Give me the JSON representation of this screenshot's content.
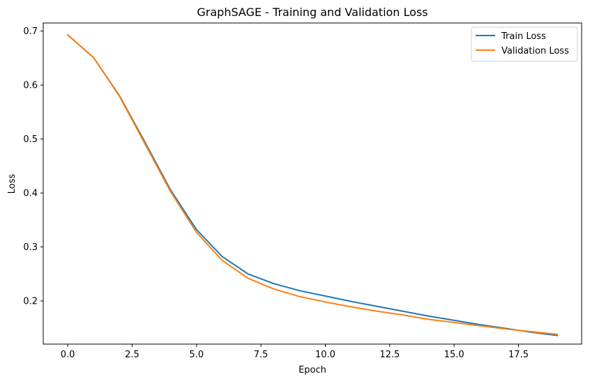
{
  "chart_data": {
    "type": "line",
    "title": "GraphSAGE - Training and Validation Loss",
    "xlabel": "Epoch",
    "ylabel": "Loss",
    "xlim": [
      -0.95,
      19.95
    ],
    "ylim": [
      0.12,
      0.715
    ],
    "xticks": [
      0.0,
      2.5,
      5.0,
      7.5,
      10.0,
      12.5,
      15.0,
      17.5
    ],
    "xtick_labels": [
      "0.0",
      "2.5",
      "5.0",
      "7.5",
      "10.0",
      "12.5",
      "15.0",
      "17.5"
    ],
    "yticks": [
      0.2,
      0.3,
      0.4,
      0.5,
      0.6,
      0.7
    ],
    "ytick_labels": [
      "0.2",
      "0.3",
      "0.4",
      "0.5",
      "0.6",
      "0.7"
    ],
    "grid": false,
    "legend_position": "top-right",
    "x": [
      0,
      1,
      2,
      3,
      4,
      5,
      6,
      7,
      8,
      9,
      10,
      11,
      12,
      13,
      14,
      15,
      16,
      17,
      18,
      19
    ],
    "series": [
      {
        "name": "Train Loss",
        "color": "#1f77b4",
        "values": [
          0.693,
          0.651,
          0.581,
          0.494,
          0.405,
          0.332,
          0.282,
          0.25,
          0.232,
          0.219,
          0.209,
          0.199,
          0.19,
          0.181,
          0.172,
          0.164,
          0.156,
          0.149,
          0.142,
          0.136
        ]
      },
      {
        "name": "Validation Loss",
        "color": "#ff7f0e",
        "values": [
          0.693,
          0.651,
          0.58,
          0.491,
          0.402,
          0.327,
          0.275,
          0.242,
          0.222,
          0.208,
          0.198,
          0.189,
          0.181,
          0.174,
          0.166,
          0.16,
          0.154,
          0.148,
          0.143,
          0.138
        ]
      }
    ]
  }
}
